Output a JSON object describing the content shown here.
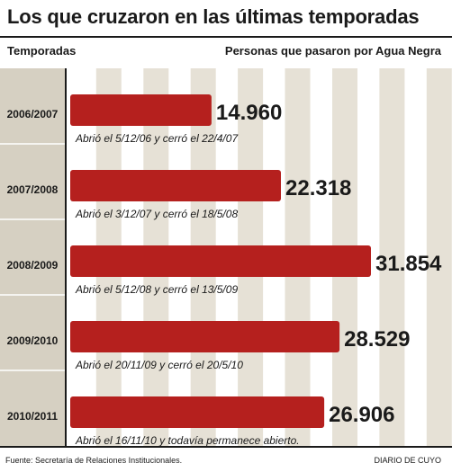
{
  "chart_data": {
    "type": "bar",
    "orientation": "horizontal",
    "title": "Los que cruzaron en las últimas temporadas",
    "category_header": "Temporadas",
    "value_header": "Personas que pasaron por Agua Negra",
    "categories": [
      "2006/2007",
      "2007/2008",
      "2008/2009",
      "2009/2010",
      "2010/2011"
    ],
    "values": [
      14960,
      22318,
      31854,
      28529,
      26906
    ],
    "value_labels": [
      "14.960",
      "22.318",
      "31.854",
      "28.529",
      "26.906"
    ],
    "annotations": [
      "Abrió el 5/12/06 y cerró el 22/4/07",
      "Abrió el 3/12/07 y cerró el 18/5/08",
      "Abrió el 5/12/08 y cerró el 13/5/09",
      "Abrió el 20/11/09 y cerró el 20/5/10",
      "Abrió el 16/11/10 y todavía permanece abierto."
    ],
    "xlim": [
      0,
      32000
    ],
    "grid": true,
    "bar_color": "#b5201e",
    "grid_color": "#e6e1d6",
    "category_band_color": "#d6d0c2"
  },
  "footer": {
    "source": "Fuente: Secretaría de Relaciones Institucionales.",
    "credit": "DIARIO DE CUYO"
  }
}
